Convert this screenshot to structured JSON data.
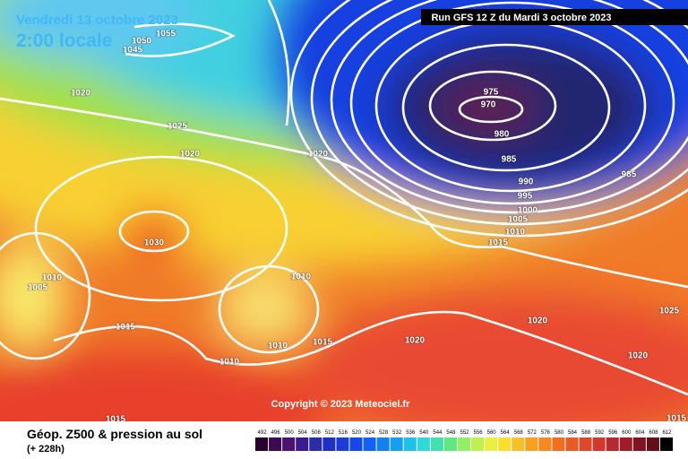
{
  "header": {
    "date": "Vendredi 13 octobre 2023",
    "time": "2:00 locale",
    "run": "Run GFS 12 Z du Mardi 3 octobre 2023"
  },
  "copyright": "Copyright © 2023 Meteociel.fr",
  "footer": {
    "title": "Géop. Z500 & pression au sol",
    "lead": "(+ 228h)"
  },
  "isobar_labels": [
    "1055",
    "1050",
    "1045",
    "1020",
    "1025",
    "1020",
    "1030",
    "1005",
    "1010",
    "1015",
    "1010",
    "1010",
    "1015",
    "1010",
    "1020",
    "975",
    "970",
    "980",
    "985",
    "990",
    "995",
    "1000",
    "1005",
    "1010",
    "1015",
    "1020",
    "1020",
    "1020",
    "1025",
    "985",
    "1015",
    "1015"
  ],
  "scale": {
    "labels": [
      492,
      496,
      500,
      504,
      508,
      512,
      516,
      520,
      524,
      528,
      532,
      536,
      540,
      544,
      548,
      552,
      556,
      560,
      564,
      568,
      572,
      576,
      580,
      584,
      588,
      592,
      596,
      600,
      604,
      608,
      612
    ],
    "colors": [
      "#2a0030",
      "#3c0a50",
      "#4a1470",
      "#3a1c8c",
      "#2a2ca8",
      "#2030c0",
      "#1c3cd8",
      "#1448e8",
      "#1460f0",
      "#1480f0",
      "#14a0f0",
      "#20c0e8",
      "#30d8d8",
      "#40e0b0",
      "#60e880",
      "#90f060",
      "#c0f050",
      "#e8f040",
      "#f8e030",
      "#f8c028",
      "#f8a020",
      "#f88820",
      "#f07020",
      "#e85c24",
      "#e0482c",
      "#d03830",
      "#b82830",
      "#a01c28",
      "#801420",
      "#601018",
      "#000000"
    ]
  }
}
